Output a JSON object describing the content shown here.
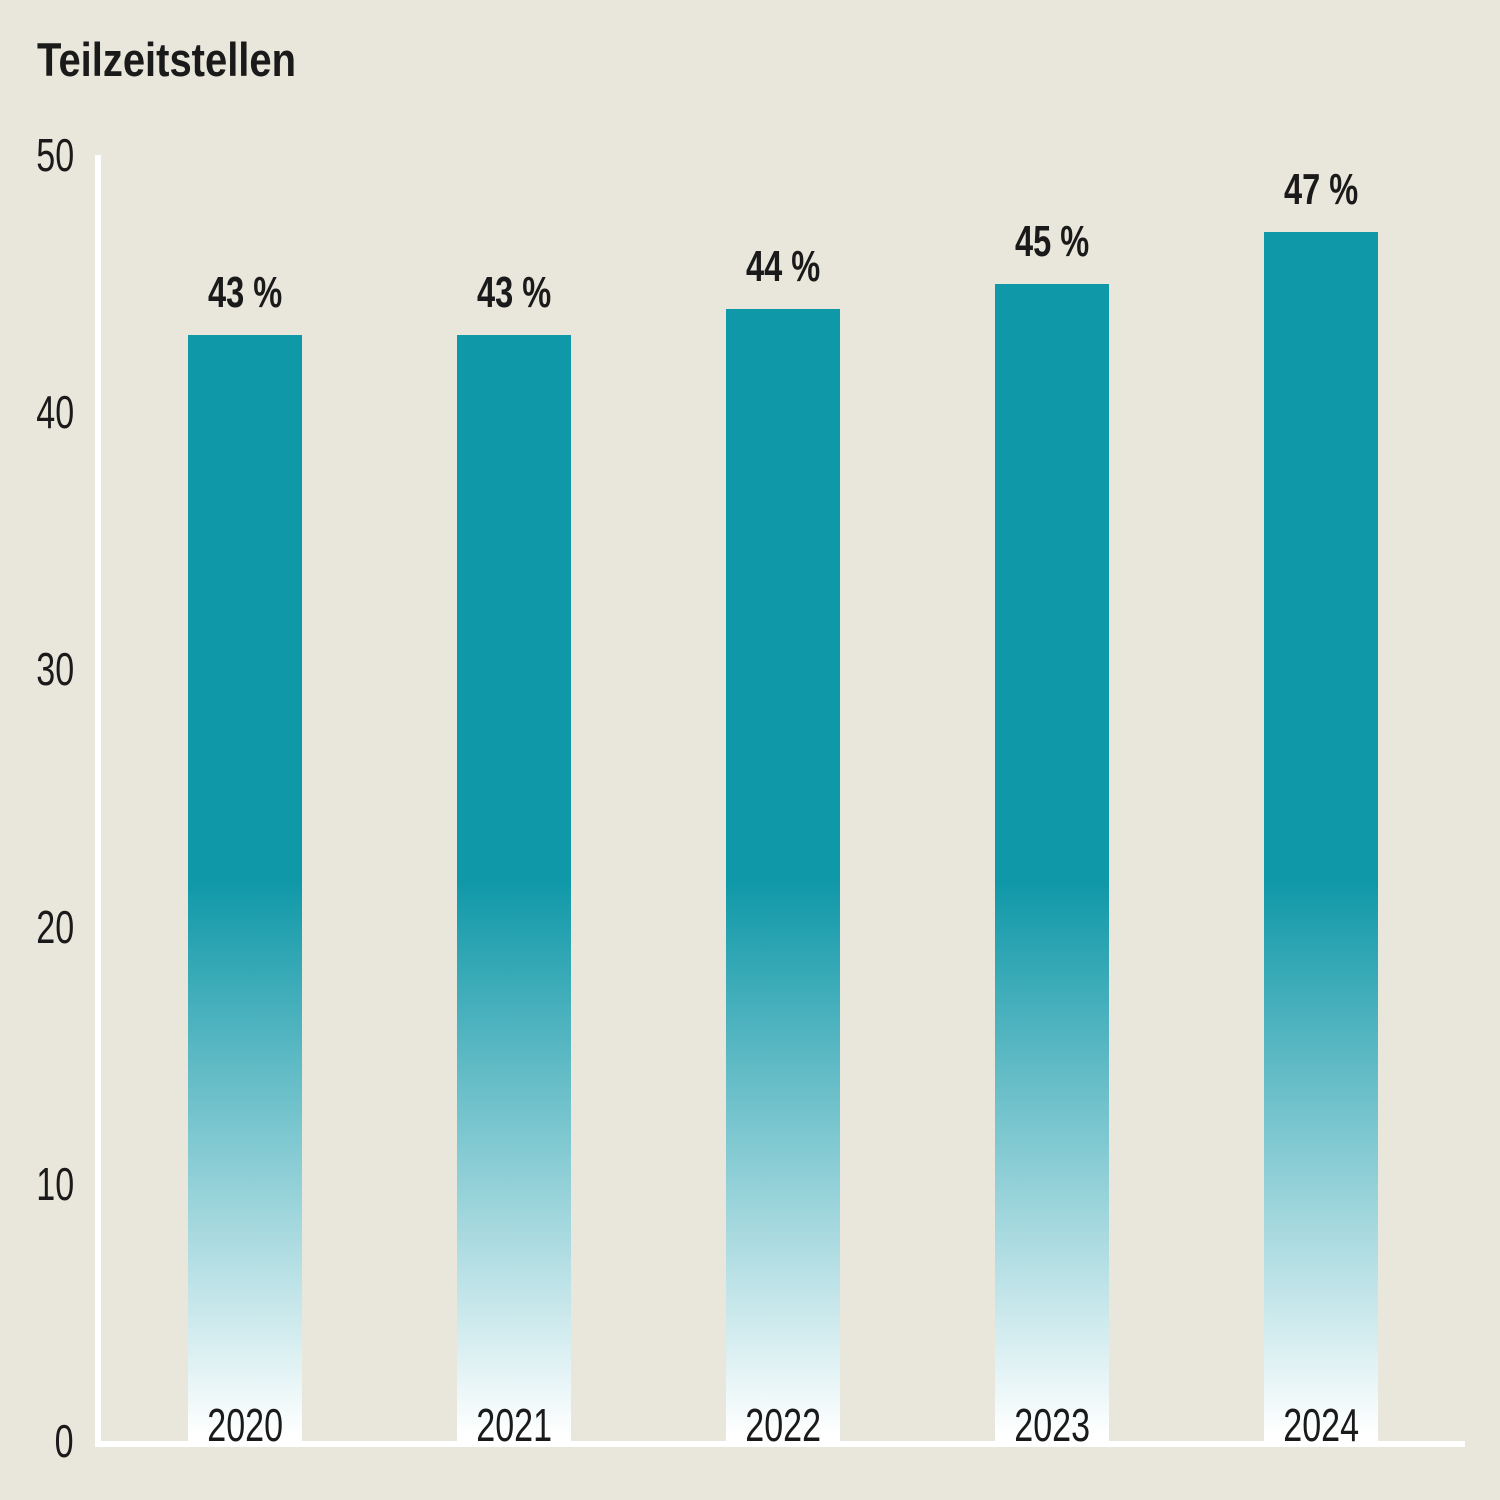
{
  "chart_data": {
    "type": "bar",
    "title": "Teilzeitstellen",
    "categories": [
      "2020",
      "2021",
      "2022",
      "2023",
      "2024"
    ],
    "values": [
      43,
      43,
      44,
      45,
      47
    ],
    "value_labels": [
      "43 %",
      "43 %",
      "44 %",
      "45 %",
      "47 %"
    ],
    "xlabel": "",
    "ylabel": "",
    "ylim": [
      0,
      50
    ],
    "yticks": [
      0,
      10,
      20,
      30,
      40,
      50
    ],
    "grid": false,
    "legend": false,
    "bar_gradient_top_color": "#0f98a8",
    "bar_gradient_bottom_color": "#ffffff",
    "axis_color": "#ffffff",
    "text_color": "#1a1a1a",
    "background_color": "#e9e7db"
  }
}
